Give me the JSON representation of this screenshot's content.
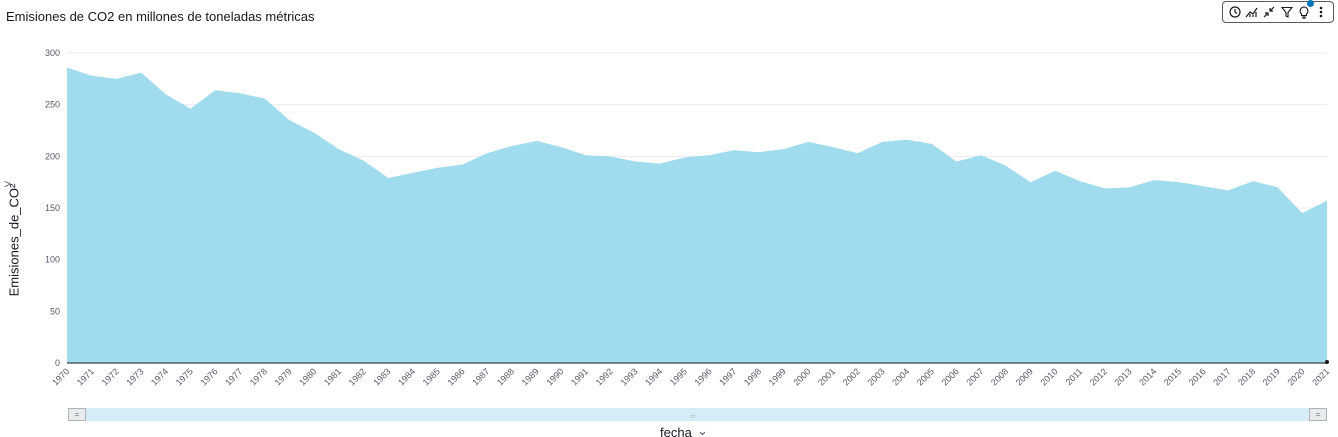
{
  "title": "Emisiones de CO2 en millones de toneladas métricas",
  "toolbar": {
    "icons": [
      "clock-icon",
      "forecast-icon",
      "collapse-icon",
      "filter-icon",
      "insight-bulb-icon",
      "more-vertical-icon"
    ]
  },
  "colors": {
    "area_fill": "#a0dcee",
    "baseline": "#545b64",
    "grid": "#e9ebed",
    "scrollbar_track": "#d6ecf7",
    "notification_dot": "#0073bb"
  },
  "chart_data": {
    "type": "area",
    "title": "Emisiones de CO2 en millones de toneladas métricas",
    "xlabel": "fecha",
    "ylabel": "Emisiones_de_CO²",
    "ylim": [
      0,
      300
    ],
    "yticks": [
      0,
      50,
      100,
      150,
      200,
      250,
      300
    ],
    "grid": true,
    "x": [
      "1970",
      "1971",
      "1972",
      "1973",
      "1974",
      "1975",
      "1976",
      "1977",
      "1978",
      "1979",
      "1980",
      "1981",
      "1982",
      "1983",
      "1984",
      "1985",
      "1986",
      "1987",
      "1988",
      "1989",
      "1990",
      "1991",
      "1992",
      "1993",
      "1994",
      "1995",
      "1996",
      "1997",
      "1998",
      "1999",
      "2000",
      "2001",
      "2002",
      "2003",
      "2004",
      "2005",
      "2006",
      "2007",
      "2008",
      "2009",
      "2010",
      "2011",
      "2012",
      "2013",
      "2014",
      "2015",
      "2016",
      "2017",
      "2018",
      "2019",
      "2020",
      "2021"
    ],
    "values": [
      286,
      278,
      275,
      281,
      260,
      246,
      264,
      261,
      256,
      235,
      223,
      207,
      196,
      179,
      184,
      189,
      192,
      203,
      210,
      215,
      209,
      201,
      200,
      195,
      193,
      199,
      201,
      206,
      204,
      207,
      214,
      209,
      203,
      214,
      216,
      212,
      195,
      201,
      191,
      175,
      186,
      176,
      169,
      170,
      177,
      175,
      171,
      167,
      176,
      170,
      145,
      157
    ]
  }
}
